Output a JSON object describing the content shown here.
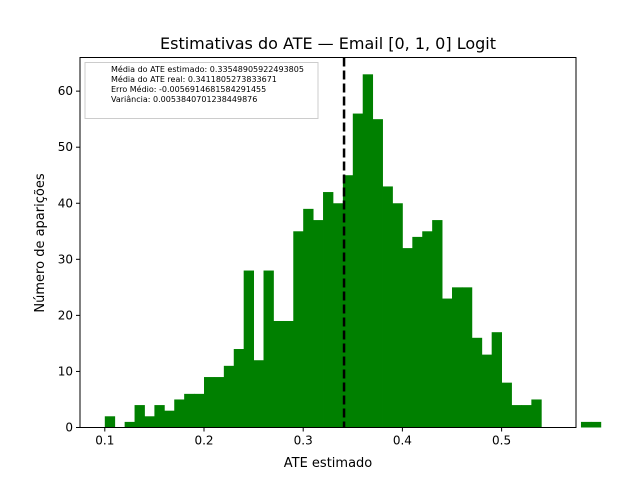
{
  "chart_data": {
    "type": "bar",
    "title": "Estimativas do ATE — Email [0, 1, 0] Logit",
    "xlabel": "ATE estimado",
    "ylabel": "Número de aparições",
    "xlim": [
      0.075,
      0.575
    ],
    "ylim": [
      0,
      66
    ],
    "x_ticks": [
      "0.1",
      "0.2",
      "0.3",
      "0.4",
      "0.5"
    ],
    "y_ticks": [
      "0",
      "10",
      "20",
      "30",
      "40",
      "50",
      "60"
    ],
    "bar_color": "#008000",
    "bin_width": 0.01,
    "bin_start": 0.1,
    "counts": [
      2,
      0,
      1,
      4,
      2,
      4,
      3,
      5,
      6,
      6,
      9,
      9,
      11,
      14,
      28,
      12,
      28,
      19,
      19,
      35,
      39,
      37,
      42,
      40,
      45,
      56,
      63,
      55,
      43,
      40,
      32,
      34,
      35,
      37,
      23,
      25,
      25,
      16,
      13,
      17,
      8,
      4,
      4,
      5,
      0,
      0,
      0,
      0,
      1,
      1
    ],
    "reference_line": {
      "x": 0.3411805273833671,
      "color": "#000000",
      "style": "dashed"
    },
    "legend_placement": "top-left",
    "legend": [
      "Média do ATE estimado: 0.33548905922493805",
      "Média do ATE real: 0.3411805273833671",
      "Erro Médio: -0.0056914681584291455",
      "Variância: 0.0053840701238449876"
    ]
  }
}
